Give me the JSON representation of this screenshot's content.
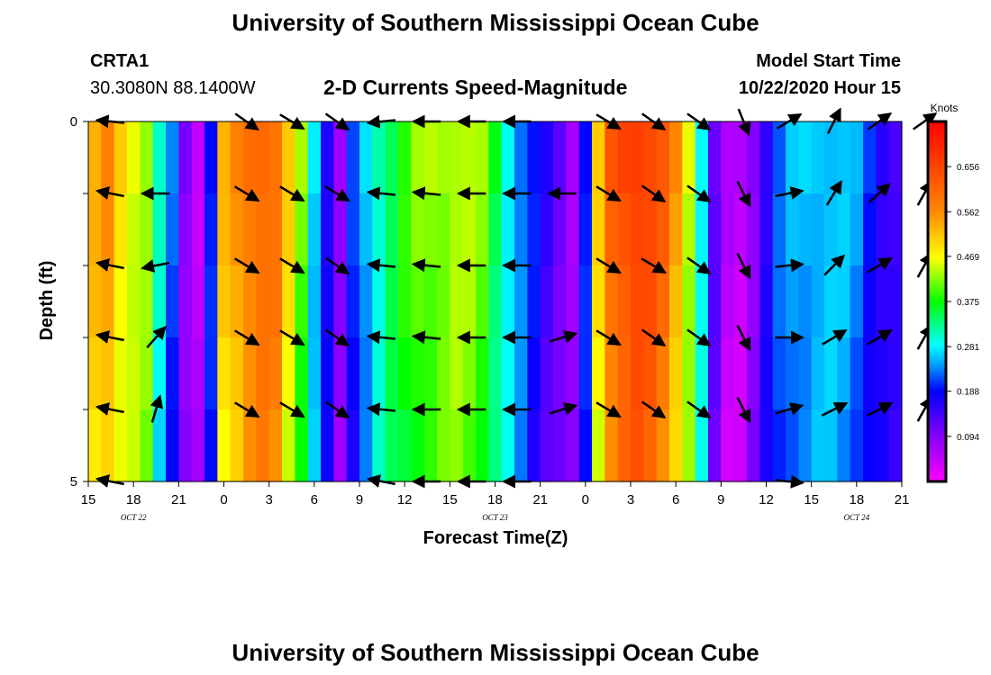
{
  "page": {
    "title": "University of Southern Mississippi Ocean Cube",
    "footer_title": "University of Southern Mississippi Ocean Cube",
    "station_id": "CRTA1",
    "station_coords": "30.3080N 88.1400W",
    "plot_title": "2-D Currents Speed-Magnitude",
    "model_label": "Model Start Time",
    "model_start": "10/22/2020 Hour 15"
  },
  "chart_data": {
    "type": "heatmap",
    "title": "2-D Currents Speed-Magnitude",
    "xlabel": "Forecast Time(Z)",
    "ylabel": "Depth (ft)",
    "colorbar_label": "Knots",
    "colorbar_ticks": [
      "0.094",
      "0.188",
      "0.281",
      "0.375",
      "0.469",
      "0.562",
      "0.656"
    ],
    "colorbar_values": [
      0.094,
      0.188,
      0.281,
      0.375,
      0.469,
      0.562,
      0.656
    ],
    "speed_range": [
      0.0,
      0.75
    ],
    "y_tick_labels": [
      "0",
      "5"
    ],
    "ylim": [
      0,
      5
    ],
    "x_tick_labels": [
      "15",
      "18",
      "21",
      "0",
      "3",
      "6",
      "9",
      "12",
      "15",
      "18",
      "21",
      "0",
      "3",
      "6",
      "9",
      "12",
      "15",
      "18",
      "21"
    ],
    "date_labels": [
      {
        "text": "OCT 22",
        "hour": 18
      },
      {
        "text": "OCT 23",
        "hour": 42
      },
      {
        "text": "OCT 24",
        "hour": 66
      }
    ],
    "time_range_hours": [
      0,
      54
    ],
    "depth_levels": 5,
    "speed_profile_knots": [
      0.53,
      0.56,
      0.5,
      0.47,
      0.44,
      0.3,
      0.22,
      0.1,
      0.06,
      0.2,
      0.52,
      0.56,
      0.6,
      0.62,
      0.6,
      0.5,
      0.42,
      0.28,
      0.18,
      0.08,
      0.2,
      0.26,
      0.32,
      0.36,
      0.39,
      0.42,
      0.43,
      0.44,
      0.45,
      0.44,
      0.42,
      0.36,
      0.3,
      0.24,
      0.19,
      0.15,
      0.12,
      0.08,
      0.2,
      0.5,
      0.62,
      0.66,
      0.68,
      0.66,
      0.62,
      0.55,
      0.46,
      0.3,
      0.12,
      0.05,
      0.05,
      0.1,
      0.17,
      0.22,
      0.25,
      0.26,
      0.27,
      0.27,
      0.26,
      0.24,
      0.2,
      0.17,
      0.15
    ],
    "vector_rows": [
      {
        "depth_row": 1,
        "vectors": [
          [
            16,
            -1,
            -0.1
          ],
          [
            18,
            0,
            0
          ],
          [
            21,
            0,
            0
          ],
          [
            0,
            1,
            0.7
          ],
          [
            3,
            1,
            0.6
          ],
          [
            6,
            1,
            0.7
          ],
          [
            9,
            -1,
            0.1
          ],
          [
            12,
            -1,
            0
          ],
          [
            15,
            -1,
            0
          ],
          [
            18,
            -1,
            0
          ],
          [
            21,
            0,
            0
          ],
          [
            0,
            1,
            0.6
          ],
          [
            3,
            1,
            0.7
          ],
          [
            6,
            1,
            0.7
          ],
          [
            9,
            0.4,
            1
          ],
          [
            12,
            1,
            -0.6
          ],
          [
            15,
            0.5,
            -1
          ],
          [
            18,
            1,
            -0.7
          ],
          [
            21,
            1,
            -0.7
          ]
        ]
      },
      {
        "depth_row": 2,
        "vectors": [
          [
            16,
            -1,
            -0.2
          ],
          [
            18,
            -1,
            0
          ],
          [
            21,
            0,
            0
          ],
          [
            0,
            1,
            0.6
          ],
          [
            3,
            1,
            0.6
          ],
          [
            6,
            1,
            0.6
          ],
          [
            9,
            -1,
            -0.1
          ],
          [
            12,
            -1,
            -0.1
          ],
          [
            15,
            -1,
            0
          ],
          [
            18,
            -1,
            0
          ],
          [
            21,
            -1,
            0
          ],
          [
            0,
            1,
            0.6
          ],
          [
            3,
            1,
            0.7
          ],
          [
            6,
            1,
            0.7
          ],
          [
            9,
            0.5,
            1
          ],
          [
            12,
            1,
            -0.2
          ],
          [
            15,
            0.6,
            -1
          ],
          [
            18,
            0.9,
            -0.8
          ],
          [
            21,
            0.5,
            -0.9
          ]
        ]
      },
      {
        "depth_row": 3,
        "vectors": [
          [
            16,
            -1,
            -0.2
          ],
          [
            18,
            -1,
            0.2
          ],
          [
            21,
            0,
            0
          ],
          [
            0,
            1,
            0.6
          ],
          [
            3,
            1,
            0.6
          ],
          [
            6,
            1,
            0.7
          ],
          [
            9,
            -1,
            -0.1
          ],
          [
            12,
            -1,
            -0.1
          ],
          [
            15,
            -1,
            0
          ],
          [
            18,
            -1,
            0
          ],
          [
            21,
            0,
            0
          ],
          [
            0,
            1,
            0.6
          ],
          [
            3,
            1,
            0.6
          ],
          [
            6,
            1,
            0.7
          ],
          [
            9,
            0.5,
            1
          ],
          [
            12,
            1,
            -0.1
          ],
          [
            15,
            0.8,
            -0.8
          ],
          [
            18,
            1,
            -0.6
          ],
          [
            21,
            0.5,
            -0.9
          ]
        ]
      },
      {
        "depth_row": 4,
        "vectors": [
          [
            16,
            -1,
            -0.2
          ],
          [
            18,
            0.8,
            -0.9
          ],
          [
            21,
            0,
            0
          ],
          [
            0,
            1,
            0.6
          ],
          [
            3,
            1,
            0.6
          ],
          [
            6,
            1,
            0.7
          ],
          [
            9,
            -1,
            -0.1
          ],
          [
            12,
            -1,
            -0.1
          ],
          [
            15,
            -1,
            0
          ],
          [
            18,
            -1,
            0
          ],
          [
            21,
            1,
            -0.3
          ],
          [
            0,
            1,
            0.6
          ],
          [
            3,
            1,
            0.7
          ],
          [
            6,
            1,
            0.7
          ],
          [
            9,
            0.5,
            1
          ],
          [
            12,
            1,
            0
          ],
          [
            15,
            1,
            -0.6
          ],
          [
            18,
            1,
            -0.6
          ],
          [
            21,
            0.5,
            -0.9
          ]
        ]
      },
      {
        "depth_row": 5,
        "vectors": [
          [
            16,
            -1,
            -0.2
          ],
          [
            18,
            0.3,
            -1
          ],
          [
            21,
            0,
            0
          ],
          [
            0,
            1,
            0.6
          ],
          [
            3,
            1,
            0.6
          ],
          [
            6,
            1,
            0.7
          ],
          [
            9,
            -1,
            -0.1
          ],
          [
            12,
            -1,
            0
          ],
          [
            15,
            -1,
            0
          ],
          [
            18,
            -1,
            0
          ],
          [
            21,
            1,
            -0.3
          ],
          [
            0,
            1,
            0.6
          ],
          [
            3,
            1,
            0.7
          ],
          [
            6,
            1,
            0.7
          ],
          [
            9,
            0.5,
            1
          ],
          [
            12,
            1,
            -0.3
          ],
          [
            15,
            1,
            -0.5
          ],
          [
            18,
            1,
            -0.5
          ],
          [
            21,
            0.5,
            -0.9
          ]
        ]
      },
      {
        "depth_row": 6,
        "vectors": [
          [
            16,
            -1,
            -0.2
          ],
          [
            18,
            0,
            0
          ],
          [
            21,
            0,
            0
          ],
          [
            0,
            0,
            0
          ],
          [
            3,
            0,
            0
          ],
          [
            6,
            0,
            0
          ],
          [
            9,
            -1,
            -0.2
          ],
          [
            12,
            -1,
            0
          ],
          [
            15,
            -1,
            0
          ],
          [
            18,
            -1,
            0
          ],
          [
            21,
            0,
            0
          ],
          [
            0,
            0,
            0
          ],
          [
            3,
            0,
            0
          ],
          [
            6,
            0,
            0
          ],
          [
            9,
            0,
            0
          ],
          [
            12,
            1,
            0.1
          ],
          [
            15,
            0,
            0
          ],
          [
            18,
            0,
            0
          ],
          [
            21,
            0,
            0
          ]
        ]
      }
    ],
    "grid": false,
    "legend": "right"
  }
}
